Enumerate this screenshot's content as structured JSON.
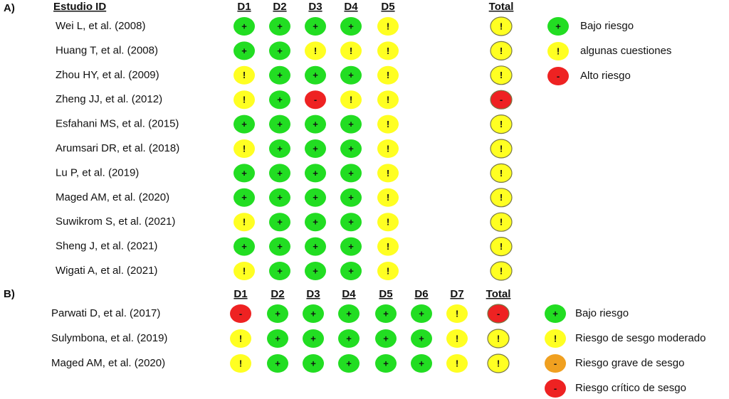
{
  "panels": [
    {
      "label": "A)",
      "study_header": "Estudio ID",
      "domains": [
        "D1",
        "D2",
        "D3",
        "D4",
        "D5"
      ],
      "total_header": "Total",
      "cell_colors": {
        "+": "#22dd22",
        "!": "#ffff22",
        "-": "#ee2222"
      },
      "rows": [
        {
          "study": "Wei L, et al. (2008)",
          "ratings": [
            "+",
            "+",
            "+",
            "+",
            "!"
          ],
          "total": "!"
        },
        {
          "study": "Huang T, et al. (2008)",
          "ratings": [
            "+",
            "+",
            "!",
            "!",
            "!"
          ],
          "total": "!"
        },
        {
          "study": "Zhou HY, et al. (2009)",
          "ratings": [
            "!",
            "+",
            "+",
            "+",
            "!"
          ],
          "total": "!"
        },
        {
          "study": "Zheng JJ, et al. (2012)",
          "ratings": [
            "!",
            "+",
            "-",
            "!",
            "!"
          ],
          "total": "-"
        },
        {
          "study": "Esfahani MS, et al. (2015)",
          "ratings": [
            "+",
            "+",
            "+",
            "+",
            "!"
          ],
          "total": "!"
        },
        {
          "study": "Arumsari DR, et al. (2018)",
          "ratings": [
            "!",
            "+",
            "+",
            "+",
            "!"
          ],
          "total": "!"
        },
        {
          "study": "Lu P, et al. (2019)",
          "ratings": [
            "+",
            "+",
            "+",
            "+",
            "!"
          ],
          "total": "!"
        },
        {
          "study": "Maged AM, et al. (2020)",
          "ratings": [
            "+",
            "+",
            "+",
            "+",
            "!"
          ],
          "total": "!"
        },
        {
          "study": "Suwikrom S, et al. (2021)",
          "ratings": [
            "!",
            "+",
            "+",
            "+",
            "!"
          ],
          "total": "!"
        },
        {
          "study": "Sheng J, et al. (2021)",
          "ratings": [
            "+",
            "+",
            "+",
            "+",
            "!"
          ],
          "total": "!"
        },
        {
          "study": "Wigati A, et al. (2021)",
          "ratings": [
            "!",
            "+",
            "+",
            "+",
            "!"
          ],
          "total": "!"
        }
      ],
      "legend": [
        {
          "symbol": "+",
          "label": "Bajo riesgo",
          "color": "#22dd22"
        },
        {
          "symbol": "!",
          "label": "algunas cuestiones",
          "color": "#ffff22"
        },
        {
          "symbol": "-",
          "label": "Alto riesgo",
          "color": "#ee2222"
        }
      ]
    },
    {
      "label": "B)",
      "domains": [
        "D1",
        "D2",
        "D3",
        "D4",
        "D5",
        "D6",
        "D7"
      ],
      "total_header": "Total",
      "cell_colors": {
        "+": "#22dd22",
        "!": "#ffff22",
        "-": "#ee2222"
      },
      "rows": [
        {
          "study": "Parwati D, et al. (2017)",
          "ratings": [
            "-",
            "+",
            "+",
            "+",
            "+",
            "+",
            "!"
          ],
          "total": "-"
        },
        {
          "study": "Sulymbona, et al. (2019)",
          "ratings": [
            "!",
            "+",
            "+",
            "+",
            "+",
            "+",
            "!"
          ],
          "total": "!"
        },
        {
          "study": "Maged AM, et al. (2020)",
          "ratings": [
            "!",
            "+",
            "+",
            "+",
            "+",
            "+",
            "!"
          ],
          "total": "!"
        }
      ],
      "legend": [
        {
          "symbol": "+",
          "label": "Bajo riesgo",
          "color": "#22dd22"
        },
        {
          "symbol": "!",
          "label": "Riesgo de sesgo moderado",
          "color": "#ffff22"
        },
        {
          "symbol": "-",
          "label": "Riesgo grave de sesgo",
          "color": "#f0a020"
        },
        {
          "symbol": "-",
          "label": "Riesgo crítico de sesgo",
          "color": "#ee2222"
        }
      ]
    }
  ]
}
